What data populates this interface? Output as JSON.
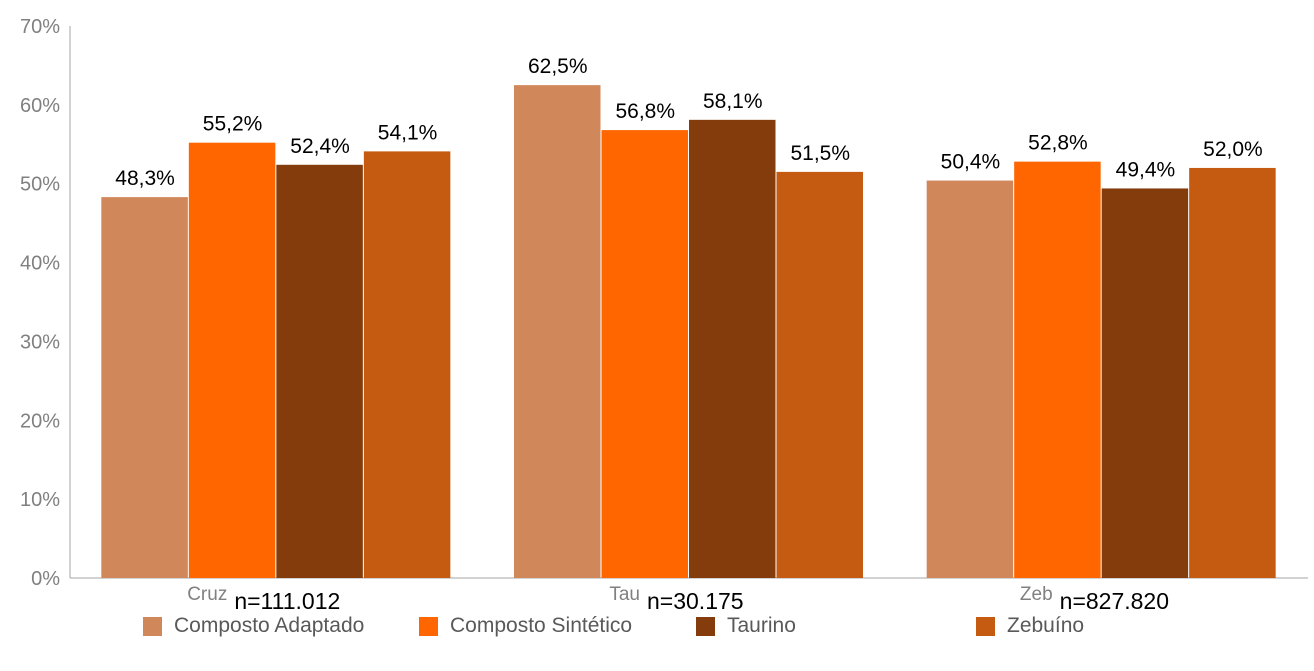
{
  "chart_data": {
    "type": "bar",
    "categories": [
      "Cruz",
      "Tau",
      "Zeb"
    ],
    "group_notes": [
      "n=111.012",
      "n=30.175",
      "n=827.820"
    ],
    "series": [
      {
        "name": "Composto Adaptado",
        "values": [
          48.3,
          62.5,
          50.4
        ],
        "labels": [
          "48,3%",
          "62,5%",
          "50,4%"
        ],
        "color": "#D0875A"
      },
      {
        "name": "Composto Sintético",
        "values": [
          55.2,
          56.8,
          52.8
        ],
        "labels": [
          "55,2%",
          "56,8%",
          "52,8%"
        ],
        "color": "#FF6600"
      },
      {
        "name": "Taurino",
        "values": [
          52.4,
          58.1,
          49.4
        ],
        "labels": [
          "52,4%",
          "58,1%",
          "49,4%"
        ],
        "color": "#843C0C"
      },
      {
        "name": "Zebuíno",
        "values": [
          54.1,
          51.5,
          52.0
        ],
        "labels": [
          "54,1%",
          "51,5%",
          "52,0%"
        ],
        "color": "#C55A11"
      }
    ],
    "yticks": [
      "0%",
      "10%",
      "20%",
      "30%",
      "40%",
      "50%",
      "60%",
      "70%"
    ],
    "ylim": [
      0,
      70
    ],
    "title": "",
    "xlabel": "",
    "ylabel": "",
    "grid": false,
    "legend": "bottom"
  }
}
